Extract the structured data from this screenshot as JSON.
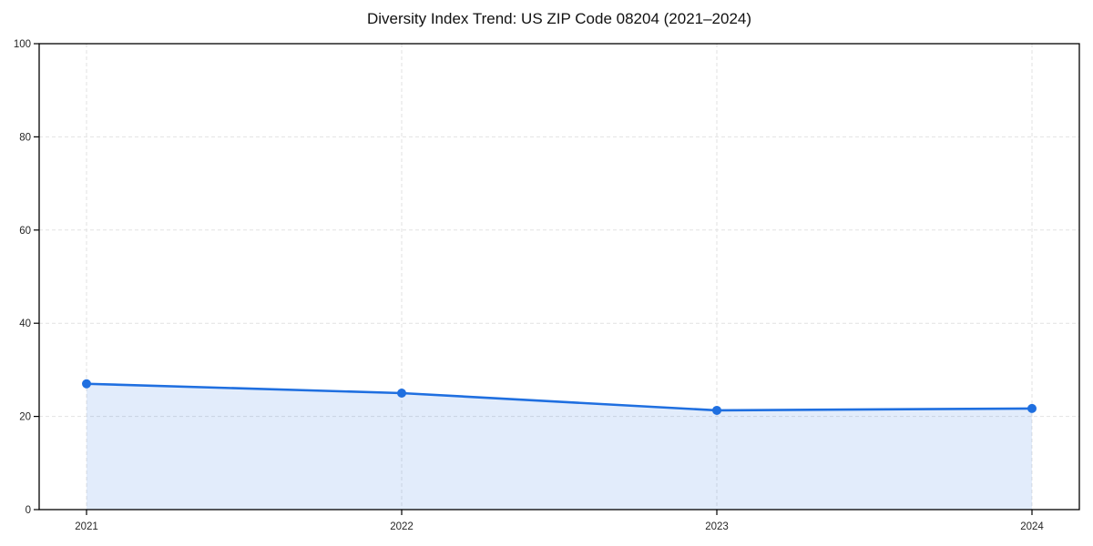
{
  "figure": {
    "background": "#ffffff"
  },
  "chart_data": {
    "type": "area",
    "title": "Diversity Index Trend: US ZIP Code 08204 (2021–2024)",
    "series_name": "Diversity Index",
    "categories": [
      "2021",
      "2022",
      "2023",
      "2024"
    ],
    "values": [
      27,
      25,
      21.3,
      21.7
    ],
    "xlabel": "",
    "ylabel": "",
    "ylim": [
      0,
      100
    ],
    "yticks": [
      0,
      20,
      40,
      60,
      80,
      100
    ],
    "grid": "dashed horizontal and vertical at ticks",
    "legend_position": "none",
    "colors": {
      "line": "#1f6fe0",
      "marker": "#1f6fe0",
      "area_fill": "rgba(31,111,224,0.13)",
      "gridline": "#e2e2e2",
      "axis_frame": "#000000",
      "tick_label": "#262626",
      "title": "#111111"
    }
  }
}
